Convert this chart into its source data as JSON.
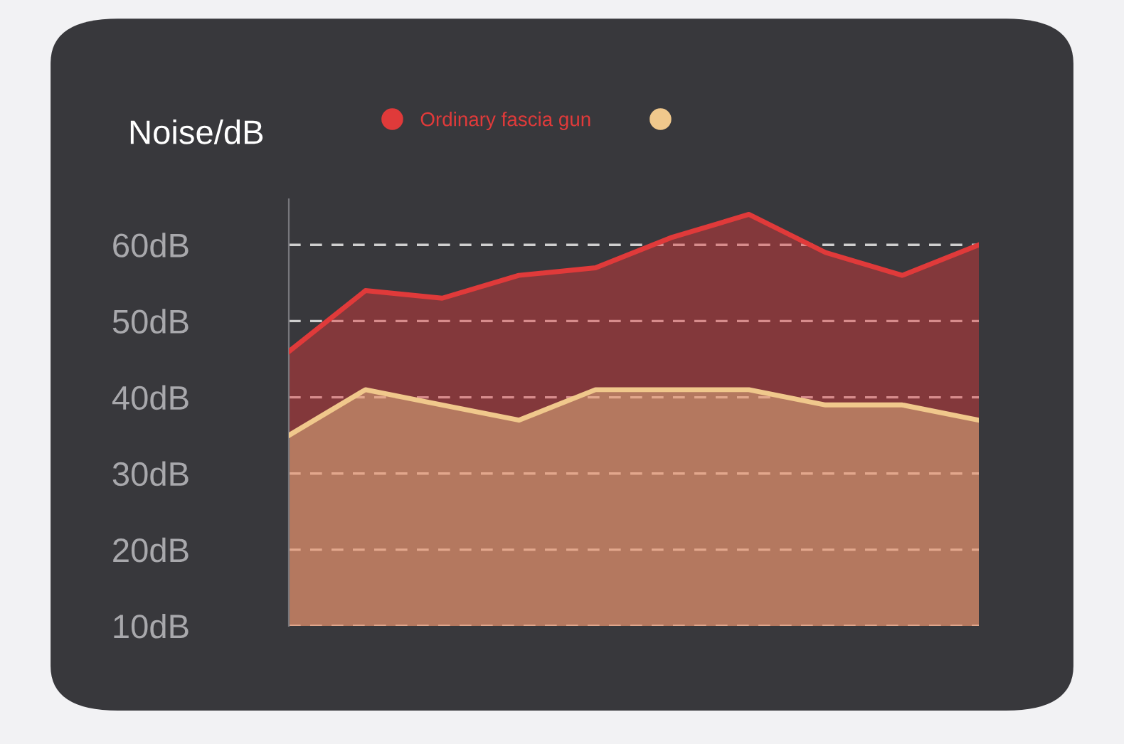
{
  "chart_data": {
    "type": "area",
    "ylabel": "Noise/dB",
    "categories": [
      null,
      null,
      null,
      null,
      null,
      null,
      null,
      null,
      null,
      null
    ],
    "series": [
      {
        "name": "Ordinary fascia gun",
        "color": "#e03a3a",
        "values": [
          46,
          54,
          53,
          56,
          57,
          61,
          64,
          59,
          56,
          60
        ]
      },
      {
        "color": "#f0c88c",
        "values": [
          35,
          41,
          39,
          37,
          41,
          41,
          41,
          39,
          39,
          37
        ]
      }
    ],
    "yticks": [
      {
        "value": 10,
        "label": "10dB"
      },
      {
        "value": 20,
        "label": "20dB"
      },
      {
        "value": 30,
        "label": "30dB"
      },
      {
        "value": 40,
        "label": "40dB"
      },
      {
        "value": 50,
        "label": "50dB"
      },
      {
        "value": 60,
        "label": "60dB"
      }
    ],
    "ylim": [
      10,
      66
    ],
    "grid": "y",
    "legend": "top",
    "line_style": "solid",
    "tick_labels": "y"
  }
}
